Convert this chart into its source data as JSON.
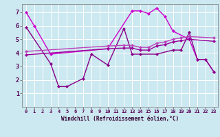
{
  "xlabel": "Windchill (Refroidissement éolien,°C)",
  "background_color": "#cce8f0",
  "grid_color": "#ffffff",
  "line_color_1": "#cc00cc",
  "line_color_2": "#880088",
  "line_color_3": "#bb44bb",
  "line_color_4": "#990099",
  "xlim": [
    -0.5,
    23.5
  ],
  "ylim": [
    0,
    7.6
  ],
  "yticks": [
    1,
    2,
    3,
    4,
    5,
    6,
    7
  ],
  "xticks": [
    0,
    1,
    2,
    3,
    4,
    5,
    6,
    7,
    8,
    9,
    10,
    11,
    12,
    13,
    14,
    15,
    16,
    17,
    18,
    19,
    20,
    21,
    22,
    23
  ],
  "line1_x": [
    0,
    1,
    3,
    10,
    13,
    14,
    15,
    16,
    17,
    18,
    20,
    21,
    22,
    23
  ],
  "line1_y": [
    7.0,
    6.0,
    3.9,
    4.3,
    7.1,
    7.1,
    6.9,
    7.3,
    6.7,
    5.6,
    5.0,
    3.5,
    3.5,
    2.6
  ],
  "line2_x": [
    0,
    3,
    4,
    5,
    7,
    8,
    10,
    12,
    13,
    14,
    16,
    18,
    19,
    20,
    21,
    22,
    23
  ],
  "line2_y": [
    5.9,
    3.2,
    1.5,
    1.5,
    2.1,
    3.9,
    3.1,
    5.8,
    3.9,
    3.9,
    3.9,
    4.2,
    4.2,
    5.5,
    3.5,
    3.5,
    2.6
  ],
  "line3_x": [
    0,
    10,
    12,
    13,
    14,
    15,
    16,
    17,
    18,
    19,
    20,
    23
  ],
  "line3_y": [
    4.1,
    4.5,
    4.55,
    4.55,
    4.4,
    4.4,
    4.7,
    4.8,
    5.0,
    5.1,
    5.2,
    5.1
  ],
  "line4_x": [
    0,
    10,
    12,
    13,
    14,
    15,
    16,
    17,
    18,
    19,
    20,
    23
  ],
  "line4_y": [
    3.85,
    4.3,
    4.35,
    4.35,
    4.2,
    4.2,
    4.5,
    4.6,
    4.8,
    4.9,
    5.0,
    4.85
  ],
  "marker": "D",
  "marker_size": 2.5,
  "linewidth": 1.0
}
